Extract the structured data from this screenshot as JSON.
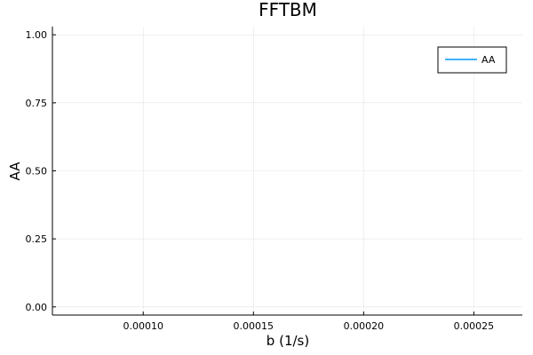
{
  "chart_data": {
    "type": "line",
    "title": "FFTBM",
    "xlabel": "b (1/s)",
    "ylabel": "AA",
    "xlim": [
      5.88e-05,
      0.000272
    ],
    "ylim": [
      -0.03,
      1.03
    ],
    "x_ticks": [
      0.0001,
      0.00015,
      0.0002,
      0.00025
    ],
    "x_tick_labels": [
      "0.00010",
      "0.00015",
      "0.00020",
      "0.00025"
    ],
    "y_ticks": [
      0,
      0.25,
      0.5,
      0.75,
      1
    ],
    "y_tick_labels": [
      "0.00",
      "0.25",
      "0.50",
      "0.75",
      "1.00"
    ],
    "grid": true,
    "legend": {
      "position": "top-right"
    },
    "series": [
      {
        "name": "AA",
        "color": "#009af9",
        "x": [],
        "y": []
      }
    ]
  }
}
